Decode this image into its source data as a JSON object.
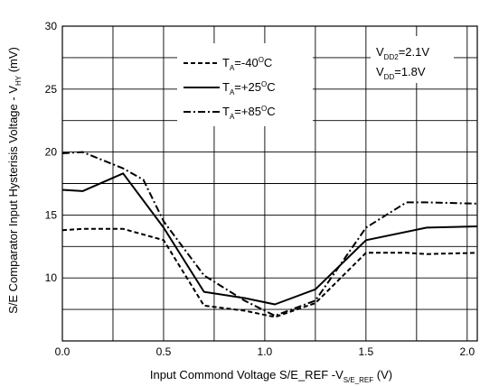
{
  "chart_data": {
    "type": "line",
    "xlabel": {
      "main": "Input Commond Voltage S/E_REF -V",
      "sub": "S/E_REF",
      "unit": " (V)"
    },
    "ylabel": {
      "main": "S/E Comparator Input Hysterisis Voltage - V",
      "sub": "HY",
      "unit": " (mV)"
    },
    "xlim": [
      0.0,
      2.05
    ],
    "ylim": [
      5,
      30
    ],
    "x_ticks": [
      "0.0",
      "0.5",
      "1.0",
      "1.5",
      "2.0"
    ],
    "y_ticks": [
      "10",
      "15",
      "20",
      "25",
      "30"
    ],
    "grid": true,
    "legend_position": "top-center",
    "notes": [
      {
        "main": "V",
        "sub": "DD2",
        "value": "=2.1V"
      },
      {
        "main": "V",
        "sub": "DD",
        "value": "=1.8V"
      }
    ],
    "series": [
      {
        "label_main": "T",
        "label_sub": "A",
        "label_value": "=-40",
        "label_sup": "O",
        "label_unit": "C",
        "style": "dashed",
        "x": [
          0.0,
          0.1,
          0.3,
          0.5,
          0.7,
          0.9,
          1.05,
          1.25,
          1.5,
          1.7,
          1.8,
          2.05
        ],
        "y": [
          13.8,
          13.9,
          13.9,
          13.0,
          7.8,
          7.4,
          6.9,
          8.0,
          12.0,
          12.0,
          11.9,
          12.0
        ]
      },
      {
        "label_main": "T",
        "label_sub": "A",
        "label_value": "=+25",
        "label_sup": "O",
        "label_unit": "C",
        "style": "solid",
        "x": [
          0.0,
          0.1,
          0.3,
          0.5,
          0.7,
          0.9,
          1.05,
          1.25,
          1.5,
          1.8,
          2.05
        ],
        "y": [
          17.0,
          16.9,
          18.3,
          14.0,
          8.9,
          8.4,
          7.9,
          9.1,
          13.0,
          14.0,
          14.1
        ]
      },
      {
        "label_main": "T",
        "label_sub": "A",
        "label_value": "=+85",
        "label_sup": "O",
        "label_unit": "C",
        "style": "dashdot",
        "x": [
          0.0,
          0.1,
          0.3,
          0.4,
          0.5,
          0.7,
          0.9,
          1.05,
          1.25,
          1.5,
          1.7,
          1.8,
          2.05
        ],
        "y": [
          19.9,
          20.0,
          18.7,
          17.8,
          14.5,
          10.2,
          8.2,
          7.0,
          8.2,
          14.0,
          16.0,
          16.0,
          15.9
        ]
      }
    ]
  }
}
